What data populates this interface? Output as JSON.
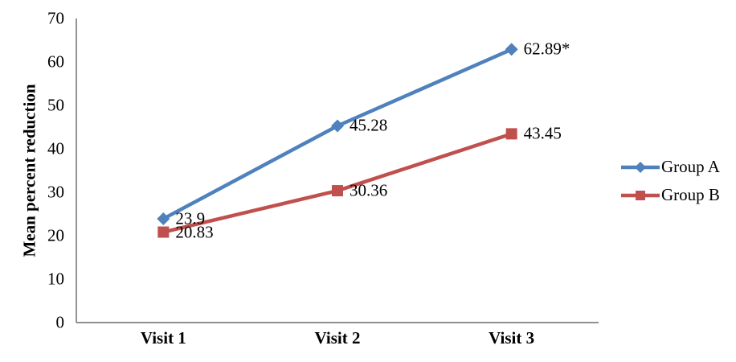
{
  "chart_data": {
    "type": "line",
    "categories": [
      "Visit 1",
      "Visit 2",
      "Visit 3"
    ],
    "series": [
      {
        "name": "Group A",
        "values": [
          23.9,
          45.28,
          62.89
        ],
        "labels": [
          "23.9",
          "45.28",
          "62.89*"
        ],
        "color": "#4f81bd",
        "marker": "diamond"
      },
      {
        "name": "Group B",
        "values": [
          20.83,
          30.36,
          43.45
        ],
        "labels": [
          "20.83",
          "30.36",
          "43.45"
        ],
        "color": "#c0504d",
        "marker": "square"
      }
    ],
    "title": "",
    "xlabel": "",
    "ylabel": "Mean percent reduction",
    "ylim": [
      0,
      70
    ],
    "yticks": [
      0,
      10,
      20,
      30,
      40,
      50,
      60,
      70
    ],
    "grid": false,
    "legend_position": "right"
  },
  "colors": {
    "axis": "#808080",
    "text": "#000000",
    "background": "#ffffff"
  }
}
